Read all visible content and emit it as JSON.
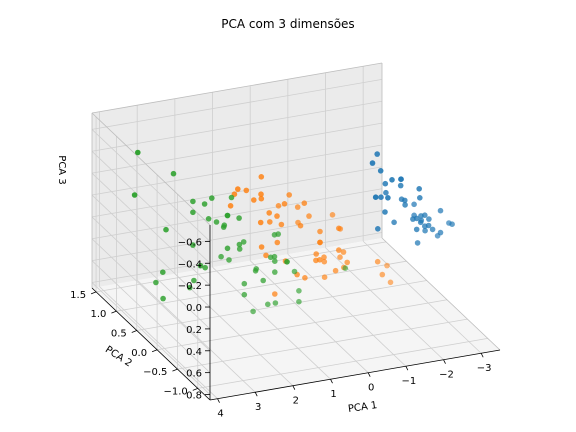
{
  "chart_data": {
    "type": "scatter",
    "projection": "3d",
    "title": "PCA com 3 dimensões",
    "xlabel": "PCA 1",
    "ylabel": "PCA 2",
    "zlabel": "PCA 3",
    "xlim": [
      -3.5,
      4.2
    ],
    "ylim": [
      -1.3,
      1.6
    ],
    "zlim": [
      -0.75,
      0.85
    ],
    "zaxis_inverted": true,
    "xticks": [
      "4",
      "3",
      "2",
      "1",
      "0",
      "−1",
      "−2",
      "−3"
    ],
    "xtick_values": [
      4,
      3,
      2,
      1,
      0,
      -1,
      -2,
      -3
    ],
    "yticks": [
      "1.5",
      "1.0",
      "0.5",
      "0.0",
      "−0.5",
      "−1.0"
    ],
    "ytick_values": [
      1.5,
      1.0,
      0.5,
      0.0,
      -0.5,
      -1.0
    ],
    "zticks": [
      "−0.6",
      "−0.4",
      "−0.2",
      "0.0",
      "0.2",
      "0.4",
      "0.6",
      "0.8"
    ],
    "ztick_values": [
      -0.6,
      -0.4,
      -0.2,
      0.0,
      0.2,
      0.4,
      0.6,
      0.8
    ],
    "grid": true,
    "legend": false,
    "colors": {
      "series_blue": "#1f77b4",
      "series_orange": "#ff7f0e",
      "series_green": "#2ca02c",
      "pane": "#ebebeb",
      "grid": "#cfcfcf"
    },
    "series": [
      {
        "color": "#1f77b4",
        "x": [
          -2.7,
          -2.9,
          -2.8,
          -3.0,
          -2.6,
          -2.4,
          -2.9,
          -2.8,
          -2.9,
          -2.7,
          -2.5,
          -2.8,
          -2.7,
          -3.2,
          -3.3,
          -2.9,
          -2.5,
          -2.6,
          -2.9,
          -2.4,
          -2.2,
          -2.2,
          -2.6,
          -2.8,
          -2.4,
          -2.2,
          -2.9,
          -2.6,
          -2.8,
          -3.0,
          -3.1,
          -2.7,
          -2.3,
          -2.6,
          -2.6,
          -2.6,
          -2.7,
          -2.5,
          -2.8,
          -2.3
        ],
        "y": [
          0.3,
          -0.2,
          -0.1,
          -0.3,
          0.3,
          0.7,
          -0.1,
          0.1,
          -0.6,
          -0.1,
          0.6,
          0.0,
          -0.2,
          -0.4,
          0.5,
          1.2,
          0.7,
          0.3,
          0.9,
          0.5,
          0.5,
          0.1,
          0.2,
          0.1,
          0.1,
          0.3,
          0.8,
          1.0,
          -0.2,
          -0.3,
          0.3,
          0.4,
          -0.3,
          -0.2,
          -0.6,
          0.8,
          0.1,
          -0.2,
          -0.1,
          -0.3
        ],
        "z": [
          0.0,
          0.1,
          -0.0,
          -0.1,
          -0.2,
          -0.3,
          0.1,
          0.1,
          -0.1,
          0.0,
          0.2,
          0.1,
          0.1,
          -0.0,
          0.0,
          0.3,
          0.1,
          -0.2,
          0.2,
          -0.1,
          0.3,
          0.1,
          0.0,
          0.2,
          -0.1,
          -0.1,
          0.0,
          -0.1,
          -0.0,
          0.1,
          -0.0,
          -0.1,
          -0.1,
          0.0,
          0.0,
          -0.1,
          0.1,
          0.2,
          0.1,
          -0.2
        ]
      },
      {
        "color": "#ff7f0e",
        "x": [
          1.3,
          0.9,
          1.5,
          0.2,
          1.1,
          0.6,
          1.1,
          -0.7,
          1.0,
          -0.0,
          -0.5,
          0.5,
          0.3,
          0.9,
          -0.3,
          0.9,
          0.7,
          0.2,
          1.0,
          0.0,
          1.2,
          0.4,
          1.3,
          0.8,
          0.8,
          1.0,
          1.4,
          1.6,
          0.9,
          -0.3,
          -0.1,
          -0.2,
          0.2,
          1.4,
          0.6,
          0.8,
          1.2,
          0.9,
          0.2,
          0.1,
          0.4,
          0.9,
          0.2,
          -0.7,
          0.3,
          0.1,
          0.3,
          0.6,
          -0.9,
          0.2
        ],
        "y": [
          0.7,
          0.3,
          0.6,
          -0.8,
          0.1,
          -0.4,
          0.3,
          -1.0,
          0.4,
          -0.7,
          -1.3,
          -0.1,
          -0.7,
          -0.1,
          -0.3,
          0.5,
          -0.2,
          -0.3,
          -0.5,
          -0.5,
          0.1,
          -0.1,
          -0.3,
          -0.1,
          0.2,
          0.4,
          0.4,
          0.6,
          0.0,
          -0.3,
          -0.6,
          -0.6,
          -0.3,
          -0.3,
          -0.3,
          0.6,
          0.4,
          -0.4,
          -0.2,
          -0.7,
          -0.6,
          0.1,
          -0.3,
          -1.2,
          -0.5,
          -0.2,
          -0.3,
          0.2,
          -0.7,
          -0.4
        ],
        "z": [
          -0.2,
          -0.1,
          -0.2,
          -0.3,
          -0.1,
          -0.3,
          0.2,
          0.1,
          -0.4,
          0.1,
          -0.1,
          -0.1,
          -0.4,
          0.2,
          -0.1,
          -0.2,
          0.3,
          0.0,
          -0.3,
          0.2,
          0.2,
          -0.3,
          -0.4,
          -0.4,
          -0.1,
          -0.2,
          -0.3,
          -0.1,
          -0.1,
          0.1,
          0.0,
          0.1,
          -0.0,
          0.4,
          0.3,
          0.1,
          -0.2,
          -0.4,
          0.2,
          0.0,
          0.2,
          0.1,
          -0.1,
          0.1,
          0.1,
          0.2,
          0.1,
          -0.2,
          0.1,
          0.1
        ]
      },
      {
        "color": "#2ca02c",
        "x": [
          2.5,
          1.4,
          2.6,
          2.0,
          2.4,
          3.4,
          0.5,
          2.9,
          2.3,
          2.9,
          1.7,
          1.8,
          2.2,
          1.3,
          1.6,
          1.9,
          1.9,
          3.5,
          3.8,
          1.3,
          2.4,
          1.2,
          3.5,
          1.4,
          2.3,
          2.6,
          1.3,
          1.3,
          2.1,
          2.4,
          2.9,
          3.2,
          2.1,
          1.4,
          1.8,
          3.1,
          2.1,
          1.9,
          1.2,
          2.0,
          2.4,
          1.9,
          1.4,
          2.6,
          2.6,
          1.9,
          1.6,
          1.8,
          1.9,
          1.4
        ],
        "y": [
          -0.0,
          -0.6,
          0.3,
          -0.4,
          -0.1,
          0.6,
          -1.2,
          0.4,
          -0.6,
          0.8,
          0.3,
          -0.2,
          0.2,
          -0.8,
          -0.5,
          0.1,
          0.0,
          1.2,
          0.4,
          -0.8,
          0.4,
          -0.6,
          0.5,
          -0.2,
          0.3,
          0.6,
          -0.2,
          -0.2,
          -0.2,
          0.6,
          0.3,
          1.4,
          -0.2,
          -0.3,
          -0.5,
          0.8,
          0.6,
          0.4,
          -0.2,
          0.4,
          0.5,
          0.3,
          -0.6,
          0.6,
          0.6,
          0.4,
          -0.2,
          0.2,
          0.4,
          -0.3
        ],
        "z": [
          0.1,
          0.0,
          0.3,
          0.1,
          0.1,
          0.4,
          -0.1,
          0.5,
          0.4,
          -0.4,
          -0.1,
          0.2,
          -0.1,
          0.2,
          0.4,
          0.1,
          0.0,
          -0.1,
          0.4,
          0.3,
          -0.1,
          0.1,
          0.6,
          0.1,
          -0.1,
          0.2,
          0.1,
          -0.1,
          0.3,
          0.4,
          0.4,
          -0.4,
          0.4,
          0.2,
          0.4,
          0.1,
          -0.2,
          0.2,
          -0.1,
          -0.0,
          -0.2,
          -0.3,
          0.0,
          -0.2,
          -0.1,
          -0.1,
          0.3,
          0.1,
          -0.1,
          0.1
        ]
      }
    ]
  }
}
